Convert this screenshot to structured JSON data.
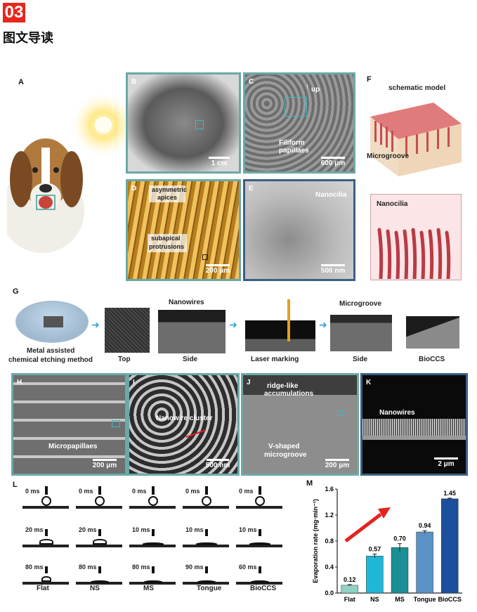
{
  "header": {
    "badge": "03",
    "title": "图文导读"
  },
  "panels": {
    "A": "A",
    "B": "B",
    "C": "C",
    "D": "D",
    "E": "E",
    "F": "F",
    "G": "G",
    "H": "H",
    "I": "I",
    "J": "J",
    "K": "K",
    "L": "L",
    "M": "M"
  },
  "B": {
    "scale": "1 cm"
  },
  "C": {
    "up": "up",
    "label1": "Filiform",
    "label2": "papillaes",
    "scale": "600 μm"
  },
  "D": {
    "ann1a": "asymmetric",
    "ann1b": "apices",
    "ann2a": "subapical",
    "ann2b": "protrusions",
    "scale": "200 μm"
  },
  "E": {
    "label": "Nanocilia",
    "scale": "500 nm"
  },
  "F": {
    "title": "schematic model",
    "microgroove": "Microgroove",
    "nanocilia": "Nanocilia"
  },
  "G": {
    "method1": "Metal assisted",
    "method2": "chemical etching method",
    "top": "Top",
    "nanowires": "Nanowires",
    "side1": "Side",
    "laser": "Laser marking",
    "microgroove": "Microgroove",
    "side2": "Side",
    "bioccs": "BioCCS"
  },
  "H": {
    "label": "Micropapillaes",
    "scale": "200 μm"
  },
  "I": {
    "label": "Nanowire cluster",
    "scale": "500 nm"
  },
  "J": {
    "top1": "ridge-like",
    "top2": "accumulations",
    "bot1": "V-shaped",
    "bot2": "microgroove",
    "scale": "200 μm"
  },
  "K": {
    "label": "Nanowires",
    "scale": "2 μm"
  },
  "L": {
    "columns": [
      "Flat",
      "NS",
      "MS",
      "Tongue",
      "BioCCS"
    ],
    "rows": [
      [
        "0 ms",
        "0 ms",
        "0 ms",
        "0 ms",
        "0 ms"
      ],
      [
        "20 ms",
        "20 ms",
        "10 ms",
        "10 ms",
        "10 ms"
      ],
      [
        "80 ms",
        "80 ms",
        "80 ms",
        "90 ms",
        "60 ms"
      ]
    ]
  },
  "chart_data": {
    "type": "bar",
    "categories": [
      "Flat",
      "NS",
      "MS",
      "Tongue",
      "BioCCS"
    ],
    "values": [
      0.12,
      0.57,
      0.7,
      0.94,
      1.45
    ],
    "value_labels": [
      "0.12",
      "0.57",
      "0.70",
      "0.94",
      "1.45"
    ],
    "errors": [
      0.01,
      0.03,
      0.06,
      0.02,
      0.01
    ],
    "colors": [
      "#8fd2c4",
      "#20b6d8",
      "#1a8f96",
      "#5b92c6",
      "#1c4f9c"
    ],
    "ylabel": "Evaporation rate (mg·min⁻¹)",
    "ylim": [
      0,
      1.6
    ],
    "yticks": [
      "0.0",
      "0.4",
      "0.8",
      "1.2",
      "1.6"
    ]
  }
}
